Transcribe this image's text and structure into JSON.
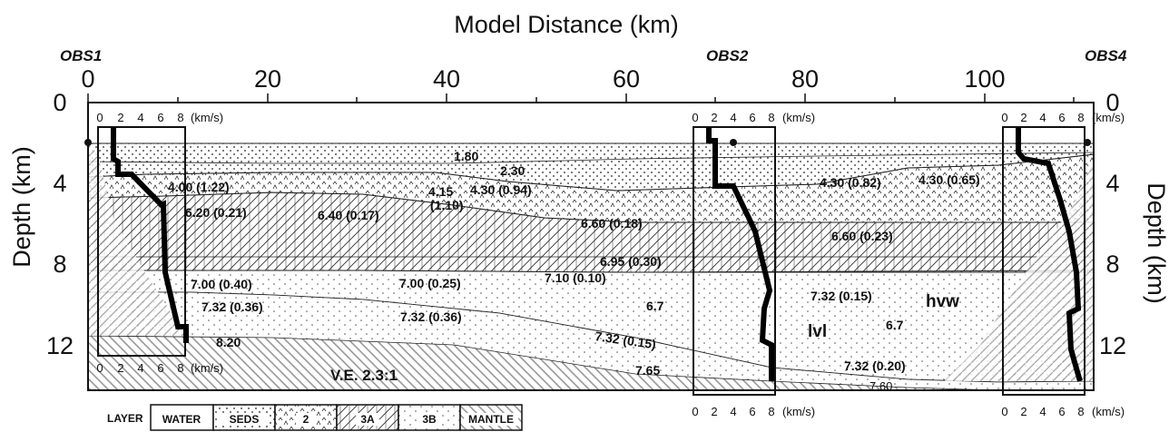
{
  "title": "Model Distance (km)",
  "y_axis_label_left": "Depth (km)",
  "y_axis_label_right": "Depth (km)",
  "x_ticks": [
    "0",
    "20",
    "40",
    "60",
    "80",
    "100"
  ],
  "y_ticks": [
    "0",
    "4",
    "8",
    "12"
  ],
  "stations": [
    "OBS1",
    "OBS2",
    "OBS4"
  ],
  "inset_ticks": [
    "0",
    "2",
    "4",
    "6",
    "8"
  ],
  "inset_unit": "(km/s)",
  "ve_label": "V.E. 2.3:1",
  "velocity_labels": [
    "1.80",
    "2.30",
    "4.00 (1.22)",
    "4.15",
    "(1.10)",
    "4.30 (0.94)",
    "4.30 (0.82)",
    "4.30 (0.65)",
    "6.20 (0.21)",
    "6.40 (0.17)",
    "6.60 (0.18)",
    "6.60 (0.23)",
    "6.95 (0.30)",
    "7.00 (0.40)",
    "7.00 (0.25)",
    "7.10 (0.10)",
    "7.32 (0.36)",
    "7.32 (0.36)",
    "6.7",
    "7.32 (0.15)",
    "7.32 (0.15)",
    "6.7",
    "8.20",
    "7.65",
    "7.32 (0.20)",
    "7.60"
  ],
  "annotations": [
    "hvw",
    "lvl"
  ],
  "legend": {
    "title": "LAYER",
    "items": [
      "WATER",
      "SEDS",
      "2",
      "3A",
      "3B",
      "MANTLE"
    ]
  }
}
